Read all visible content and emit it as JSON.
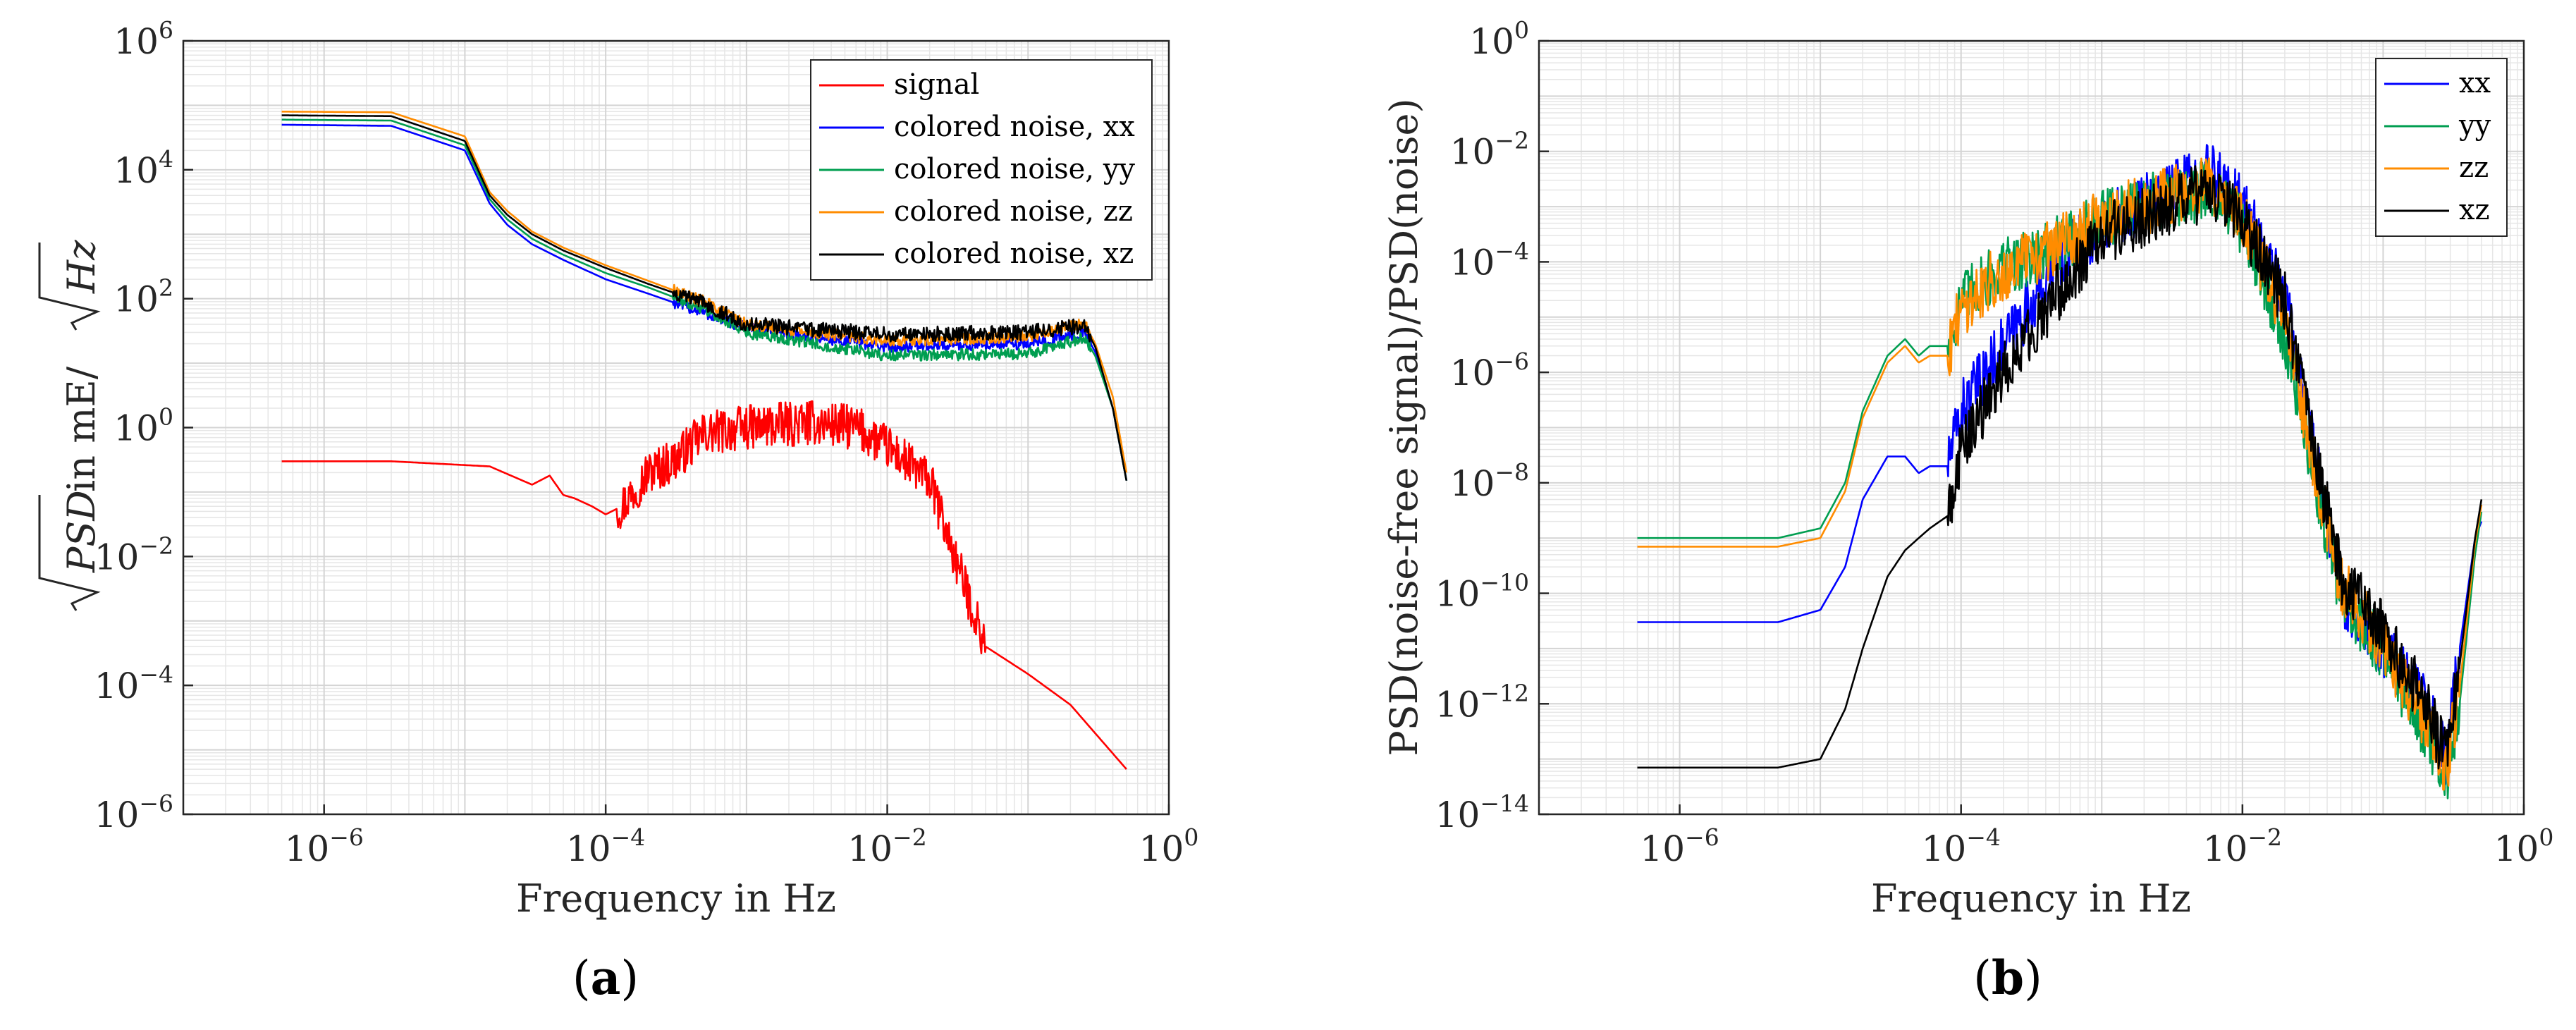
{
  "chart_data": [
    {
      "type": "line",
      "panel_label": "a",
      "xlabel": "Frequency in Hz",
      "ylabel_parts": [
        "PSD",
        " in mE/",
        "Hz"
      ],
      "xscale": "log",
      "yscale": "log",
      "xlim": [
        1e-07,
        1
      ],
      "ylim": [
        1e-06,
        1000000.0
      ],
      "x_ticks": [
        {
          "base": "10",
          "exp": "−6"
        },
        {
          "base": "10",
          "exp": "−4"
        },
        {
          "base": "10",
          "exp": "−2"
        },
        {
          "base": "10",
          "exp": "0"
        }
      ],
      "y_ticks": [
        {
          "base": "10",
          "exp": "−6"
        },
        {
          "base": "10",
          "exp": "−4"
        },
        {
          "base": "10",
          "exp": "−2"
        },
        {
          "base": "10",
          "exp": "0"
        },
        {
          "base": "10",
          "exp": "2"
        },
        {
          "base": "10",
          "exp": "4"
        },
        {
          "base": "10",
          "exp": "6"
        }
      ],
      "grid": true,
      "legend_position": "top-right",
      "series": [
        {
          "name": "signal",
          "color": "#ff0000",
          "x": [
            5e-07,
            3e-06,
            1.5e-05,
            3e-05,
            4e-05,
            5e-05,
            6e-05,
            8e-05,
            0.0001,
            0.00013,
            0.0002,
            0.0003,
            0.0005,
            0.001,
            0.003,
            0.006,
            0.01,
            0.02,
            0.03,
            0.05,
            0.1,
            0.2,
            0.5
          ],
          "y": [
            0.3,
            0.3,
            0.25,
            0.13,
            0.18,
            0.09,
            0.08,
            0.06,
            0.045,
            0.06,
            0.2,
            0.3,
            0.8,
            1.0,
            1.2,
            1.0,
            0.5,
            0.15,
            0.01,
            0.0004,
            0.00015,
            5e-05,
            5e-06
          ],
          "noisy_from": 0.00012,
          "noisy_to": 0.05,
          "noise_amp": 0.35
        },
        {
          "name": "colored noise, xx",
          "color": "#0000ff",
          "x": [
            5e-07,
            3e-06,
            1e-05,
            1.5e-05,
            2e-05,
            3e-05,
            5e-05,
            0.0001,
            0.0002,
            0.0005,
            0.001,
            0.01,
            0.1,
            0.25,
            0.3,
            0.4,
            0.5
          ],
          "y": [
            50000,
            48000,
            20000,
            3000,
            1400,
            700,
            400,
            200,
            120,
            60,
            35,
            18,
            20,
            30,
            15,
            2,
            0.15
          ],
          "noisy_from": 0.0003,
          "noisy_to": 0.28,
          "noise_amp": 0.09
        },
        {
          "name": "colored noise, yy",
          "color": "#009e50",
          "x": [
            5e-07,
            3e-06,
            1e-05,
            1.5e-05,
            2e-05,
            3e-05,
            5e-05,
            0.0001,
            0.0002,
            0.0005,
            0.001,
            0.01,
            0.1,
            0.25,
            0.3,
            0.4,
            0.5
          ],
          "y": [
            60000,
            58000,
            24000,
            3500,
            1700,
            850,
            480,
            250,
            150,
            70,
            30,
            13,
            14,
            25,
            13,
            2,
            0.15
          ],
          "noisy_from": 0.0003,
          "noisy_to": 0.28,
          "noise_amp": 0.09
        },
        {
          "name": "colored noise, zz",
          "color": "#ff8c00",
          "x": [
            5e-07,
            3e-06,
            1e-05,
            1.5e-05,
            2e-05,
            3e-05,
            5e-05,
            0.0001,
            0.0002,
            0.0005,
            0.001,
            0.01,
            0.1,
            0.25,
            0.3,
            0.4,
            0.5
          ],
          "y": [
            80000,
            78000,
            33000,
            4500,
            2300,
            1100,
            620,
            330,
            190,
            90,
            40,
            22,
            26,
            42,
            20,
            3,
            0.2
          ],
          "noisy_from": 0.0003,
          "noisy_to": 0.28,
          "noise_amp": 0.09
        },
        {
          "name": "colored noise, xz",
          "color": "#000000",
          "x": [
            5e-07,
            3e-06,
            1e-05,
            1.5e-05,
            2e-05,
            3e-05,
            5e-05,
            0.0001,
            0.0002,
            0.0005,
            0.001,
            0.01,
            0.1,
            0.25,
            0.3,
            0.4,
            0.5
          ],
          "y": [
            70000,
            68000,
            28000,
            4000,
            2000,
            1000,
            560,
            300,
            170,
            85,
            40,
            28,
            30,
            38,
            18,
            2,
            0.15
          ],
          "noisy_from": 0.0003,
          "noisy_to": 0.28,
          "noise_amp": 0.12
        }
      ]
    },
    {
      "type": "line",
      "panel_label": "b",
      "xlabel": "Frequency in Hz",
      "ylabel": "PSD(noise-free signal)/PSD(noise)",
      "xscale": "log",
      "yscale": "log",
      "xlim": [
        1e-07,
        1
      ],
      "ylim": [
        1e-14,
        1
      ],
      "x_ticks": [
        {
          "base": "10",
          "exp": "−6"
        },
        {
          "base": "10",
          "exp": "−4"
        },
        {
          "base": "10",
          "exp": "−2"
        },
        {
          "base": "10",
          "exp": "0"
        }
      ],
      "y_ticks": [
        {
          "base": "10",
          "exp": "−14"
        },
        {
          "base": "10",
          "exp": "−12"
        },
        {
          "base": "10",
          "exp": "−10"
        },
        {
          "base": "10",
          "exp": "−8"
        },
        {
          "base": "10",
          "exp": "−6"
        },
        {
          "base": "10",
          "exp": "−4"
        },
        {
          "base": "10",
          "exp": "−2"
        },
        {
          "base": "10",
          "exp": "0"
        }
      ],
      "grid": true,
      "legend_position": "top-right",
      "series": [
        {
          "name": "xx",
          "color": "#0000ff",
          "x": [
            5e-07,
            5e-06,
            1e-05,
            1.5e-05,
            2e-05,
            3e-05,
            4e-05,
            5e-05,
            6e-05,
            8e-05,
            0.0001,
            0.0002,
            0.0005,
            0.001,
            0.003,
            0.006,
            0.01,
            0.02,
            0.03,
            0.05,
            0.1,
            0.2,
            0.28,
            0.35,
            0.45,
            0.5
          ],
          "y": [
            3e-11,
            3e-11,
            5e-11,
            3e-10,
            5e-09,
            3e-08,
            3e-08,
            1.5e-08,
            2e-08,
            2e-08,
            2e-07,
            3e-06,
            0.0001,
            0.0005,
            0.002,
            0.004,
            0.001,
            3e-05,
            1e-07,
            1e-10,
            1e-11,
            1e-12,
            1e-13,
            1e-11,
            1e-09,
            2e-09
          ],
          "noisy_from": 8e-05,
          "noisy_to": 0.35,
          "noise_amp": 0.55
        },
        {
          "name": "yy",
          "color": "#009e50",
          "x": [
            5e-07,
            5e-06,
            1e-05,
            1.5e-05,
            2e-05,
            3e-05,
            4e-05,
            5e-05,
            6e-05,
            8e-05,
            0.0001,
            0.0002,
            0.0005,
            0.001,
            0.003,
            0.006,
            0.01,
            0.02,
            0.03,
            0.05,
            0.1,
            0.2,
            0.28,
            0.35,
            0.45,
            0.5
          ],
          "y": [
            1e-09,
            1e-09,
            1.5e-09,
            1e-08,
            2e-07,
            2e-06,
            4e-06,
            2e-06,
            3e-06,
            3e-06,
            2e-05,
            8e-05,
            0.0002,
            0.0006,
            0.0015,
            0.002,
            0.0004,
            5e-06,
            3e-08,
            1e-10,
            8e-12,
            3e-13,
            3e-14,
            1e-12,
            5e-10,
            3e-09
          ],
          "noisy_from": 8e-05,
          "noisy_to": 0.35,
          "noise_amp": 0.55
        },
        {
          "name": "zz",
          "color": "#ff8c00",
          "x": [
            5e-07,
            5e-06,
            1e-05,
            1.5e-05,
            2e-05,
            3e-05,
            4e-05,
            5e-05,
            6e-05,
            8e-05,
            0.0001,
            0.0002,
            0.0005,
            0.001,
            0.003,
            0.006,
            0.01,
            0.02,
            0.03,
            0.05,
            0.1,
            0.2,
            0.28,
            0.35,
            0.45,
            0.5
          ],
          "y": [
            7e-10,
            7e-10,
            1e-09,
            7e-09,
            1.5e-07,
            1.5e-06,
            3e-06,
            1.5e-06,
            2e-06,
            2e-06,
            1.5e-05,
            7e-05,
            0.0002,
            0.0006,
            0.0015,
            0.0025,
            0.0006,
            1e-05,
            5e-08,
            1.5e-10,
            1e-11,
            5e-13,
            6e-14,
            2e-12,
            8e-10,
            4e-09
          ],
          "noisy_from": 8e-05,
          "noisy_to": 0.35,
          "noise_amp": 0.55
        },
        {
          "name": "xz",
          "color": "#000000",
          "x": [
            5e-07,
            5e-06,
            1e-05,
            1.5e-05,
            2e-05,
            3e-05,
            4e-05,
            5e-05,
            6e-05,
            8e-05,
            0.0001,
            0.0002,
            0.0005,
            0.001,
            0.003,
            0.006,
            0.01,
            0.02,
            0.03,
            0.05,
            0.1,
            0.2,
            0.28,
            0.35,
            0.45,
            0.5
          ],
          "y": [
            7e-14,
            7e-14,
            1e-13,
            8e-13,
            1e-11,
            2e-10,
            6e-10,
            1e-09,
            1.5e-09,
            2.5e-09,
            4e-08,
            1e-06,
            3e-05,
            0.0003,
            0.001,
            0.002,
            0.0005,
            2e-05,
            1e-07,
            2e-10,
            2e-11,
            1e-12,
            1e-13,
            5e-12,
            1e-09,
            5e-09
          ],
          "noisy_from": 8e-05,
          "noisy_to": 0.35,
          "noise_amp": 0.55
        }
      ]
    }
  ]
}
